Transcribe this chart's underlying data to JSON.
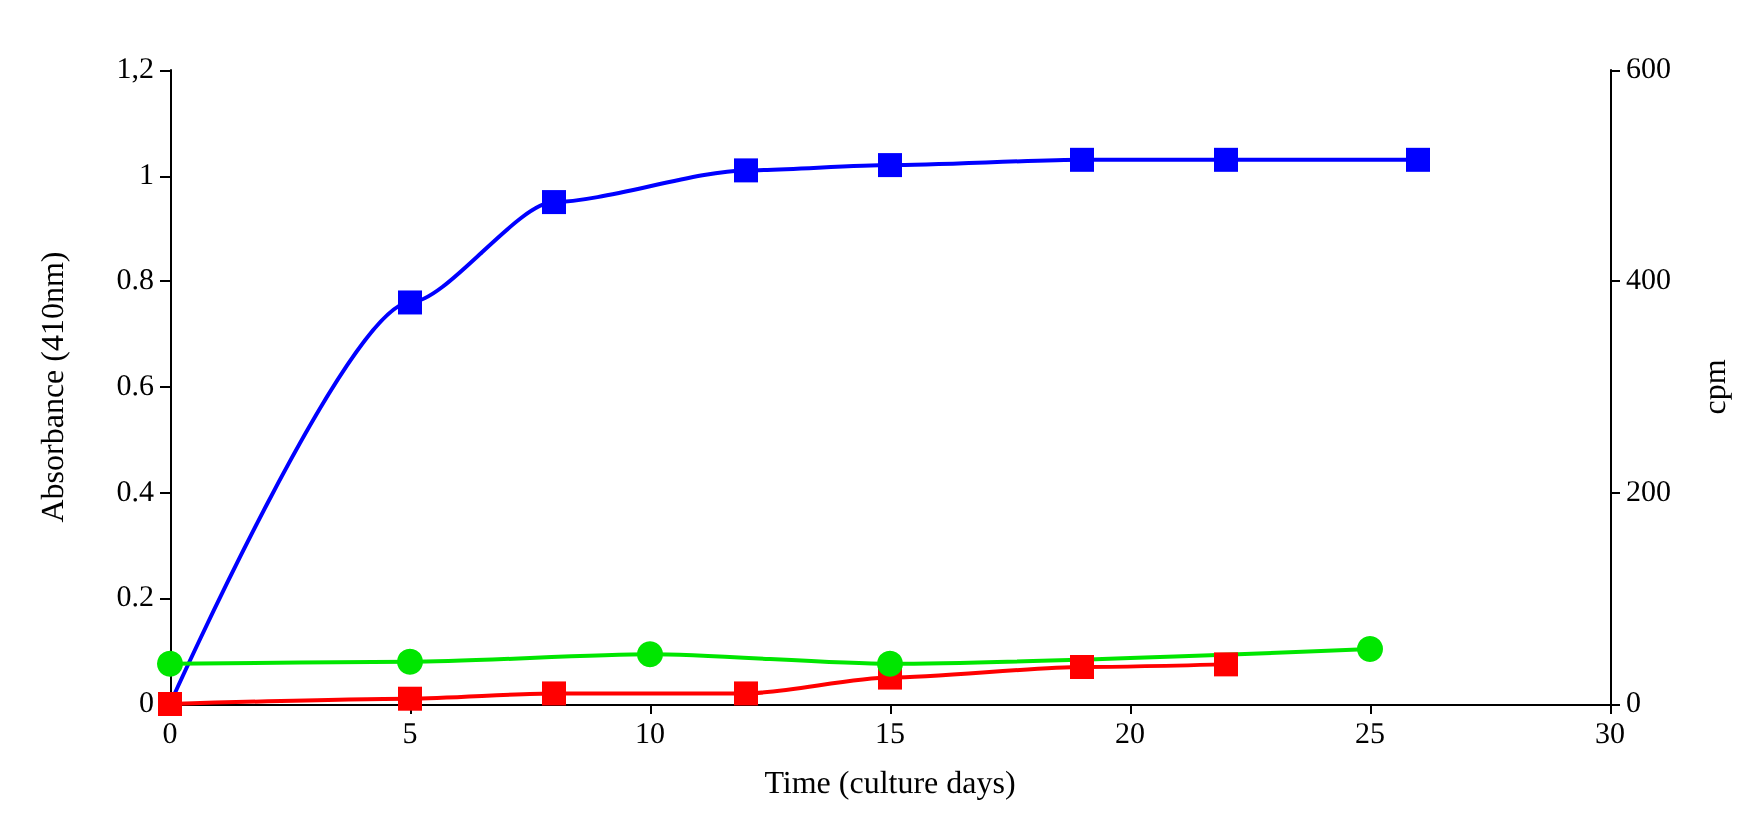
{
  "chart_data": {
    "type": "line",
    "xlabel": "Time (culture days)",
    "ylabel": "Absorbance (410nm)",
    "y2label": "cpm",
    "xlim": [
      0,
      30
    ],
    "xticks": [
      0,
      5,
      10,
      15,
      20,
      25,
      30
    ],
    "ylim": [
      0,
      1.2
    ],
    "yticks": [
      0,
      0.2,
      0.4,
      0.6,
      0.8,
      1,
      {
        "value": 1.2,
        "label": "1,2"
      }
    ],
    "y2lim": [
      0,
      600
    ],
    "y2ticks": [
      0,
      200,
      400,
      600
    ],
    "grid": false,
    "line_style": "solid",
    "series": [
      {
        "color": "#0000ff",
        "marker": "square",
        "x": [
          0,
          5,
          8,
          12,
          15,
          19,
          22,
          26
        ],
        "values": [
          0,
          0.76,
          0.95,
          1.01,
          1.02,
          1.03,
          1.03,
          1.03
        ]
      },
      {
        "color": "#ff0000",
        "marker": "square",
        "x": [
          0,
          5,
          8,
          12,
          15,
          19,
          22
        ],
        "values": [
          0,
          0.01,
          0.02,
          0.02,
          0.05,
          0.07,
          0.075
        ]
      },
      {
        "color": "#00e600",
        "marker": "circle",
        "axis": "y2",
        "x": [
          0,
          5,
          10,
          15,
          25
        ],
        "values": [
          38,
          40,
          47,
          38,
          52
        ]
      }
    ]
  }
}
